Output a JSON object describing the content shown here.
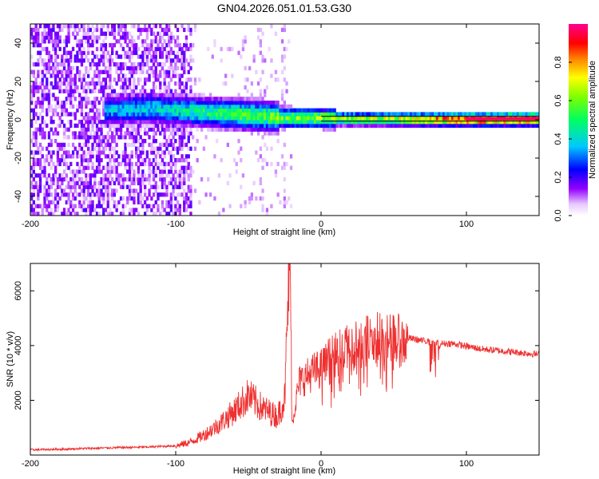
{
  "figure": {
    "title": "GN04.2026.051.01.53.G30"
  },
  "chart_data": [
    {
      "type": "heatmap",
      "xlabel": "Height of straight line (km)",
      "ylabel": "Frequency (Hz)",
      "xlim": [
        -200,
        150
      ],
      "ylim": [
        -50,
        50
      ],
      "x_ticks": [
        -200,
        -100,
        0,
        100
      ],
      "y_ticks": [
        -40,
        -20,
        0,
        20,
        40
      ],
      "colorbar": {
        "label": "Normalized spectral amplitude",
        "range": [
          0,
          1
        ],
        "ticks": [
          0.0,
          0.2,
          0.4,
          0.6,
          0.8
        ],
        "tick_labels": [
          "0.0",
          "0.2",
          "0.4",
          "0.6",
          "0.8"
        ],
        "colors": [
          "#ffffff",
          "#9400ff",
          "#0000ff",
          "#00ffff",
          "#00ff00",
          "#ffff00",
          "#ff8000",
          "#ff0000",
          "#ff00a0"
        ]
      },
      "description_ridge": {
        "center_frequency_hz": [
          [
            -150,
            5
          ],
          [
            -120,
            6
          ],
          [
            -100,
            5
          ],
          [
            -80,
            4
          ],
          [
            -60,
            3
          ],
          [
            -40,
            2
          ],
          [
            -20,
            1
          ],
          [
            0,
            1
          ],
          [
            20,
            0.5
          ],
          [
            100,
            0.3
          ],
          [
            150,
            0.5
          ]
        ],
        "peak_amplitude": [
          [
            -150,
            0.35
          ],
          [
            -100,
            0.45
          ],
          [
            -60,
            0.55
          ],
          [
            -30,
            0.6
          ],
          [
            0,
            0.65
          ],
          [
            50,
            0.7
          ],
          [
            100,
            0.95
          ],
          [
            150,
            0.95
          ]
        ]
      },
      "noise_region_xlim": [
        -200,
        -90
      ]
    },
    {
      "type": "line",
      "xlabel": "Height of straight line (km)",
      "ylabel": "SNR (10 * v/v)",
      "xlim": [
        -200,
        150
      ],
      "ylim": [
        0,
        7000
      ],
      "x_ticks": [
        -200,
        -100,
        0,
        100
      ],
      "y_ticks": [
        2000,
        4000,
        6000
      ],
      "series": [
        {
          "color": "#ee3030",
          "x": [
            -200,
            -180,
            -160,
            -140,
            -120,
            -100,
            -90,
            -80,
            -70,
            -60,
            -50,
            -40,
            -30,
            -25,
            -22,
            -20,
            -15,
            -10,
            -5,
            0,
            5,
            10,
            20,
            30,
            40,
            50,
            60,
            70,
            80,
            90,
            100,
            110,
            120,
            130,
            140,
            150
          ],
          "y": [
            200,
            220,
            250,
            280,
            300,
            350,
            500,
            800,
            1200,
            1700,
            2300,
            1800,
            1500,
            2200,
            7000,
            1200,
            2800,
            3000,
            3200,
            3300,
            3600,
            3800,
            4100,
            4400,
            4500,
            4400,
            4300,
            4200,
            4100,
            4100,
            4000,
            3900,
            3850,
            3800,
            3750,
            3700
          ]
        }
      ]
    }
  ]
}
